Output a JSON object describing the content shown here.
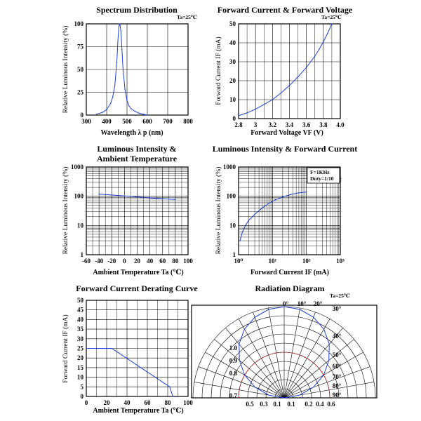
{
  "chart_data": [
    {
      "id": "spectrum",
      "type": "line",
      "title": "Spectrum Distribution",
      "note": "Ta=25℃",
      "xlabel": "Wavelength λ p (nm)",
      "ylabel": "Relative Luminous Intensity (%)",
      "xlim": [
        300,
        800
      ],
      "ylim": [
        0,
        100
      ],
      "xticks": [
        300,
        400,
        500,
        600,
        700,
        800
      ],
      "yticks": [
        0,
        25,
        50,
        75,
        100
      ],
      "grid": true,
      "series": [
        {
          "color": "#1f3fd6",
          "x": [
            350,
            380,
            400,
            420,
            430,
            440,
            450,
            455,
            460,
            465,
            470,
            475,
            480,
            490,
            500,
            510,
            520,
            540,
            560,
            580,
            600
          ],
          "y": [
            1,
            3,
            6,
            13,
            20,
            32,
            58,
            80,
            97,
            100,
            92,
            72,
            52,
            28,
            16,
            10,
            7,
            4,
            2,
            1,
            0
          ]
        }
      ]
    },
    {
      "id": "fwd-voltage",
      "type": "line",
      "title": "Forward Current & Forward Voltage",
      "note": "Ta=25℃",
      "xlabel": "Forward Voltage  VF (V)",
      "ylabel": "Forward Current IF (mA)",
      "xlim": [
        2.8,
        4.0
      ],
      "ylim": [
        0,
        50
      ],
      "xticks": [
        2.8,
        3.0,
        3.2,
        3.4,
        3.6,
        3.8,
        4.0
      ],
      "yticks": [
        0,
        10,
        20,
        30,
        40,
        50
      ],
      "grid": true,
      "series": [
        {
          "color": "#1f3fd6",
          "x": [
            2.8,
            2.9,
            3.0,
            3.1,
            3.2,
            3.3,
            3.4,
            3.5,
            3.6,
            3.7,
            3.75,
            3.8,
            3.85,
            3.9
          ],
          "y": [
            1.5,
            3,
            5,
            7.5,
            10,
            13.5,
            17.5,
            22,
            27,
            33,
            36.5,
            40.5,
            45,
            50
          ]
        }
      ]
    },
    {
      "id": "lum-temp",
      "type": "line",
      "title": [
        "Luminous Intensity &",
        "Ambient Temperature"
      ],
      "xlabel": "Ambient Temperature Ta (℃)",
      "ylabel": "Relative Luminous Intensity (%)",
      "xlim": [
        -60,
        100
      ],
      "ylim": [
        1,
        1000
      ],
      "yscale": "log",
      "xticks": [
        -60,
        -40,
        -20,
        0,
        20,
        40,
        60,
        80,
        100
      ],
      "ytick_labels": [
        "1",
        "10",
        "100",
        "1000"
      ],
      "grid": true,
      "series": [
        {
          "color": "#1f3fd6",
          "x": [
            -40,
            -20,
            0,
            20,
            40,
            60,
            80
          ],
          "y": [
            118,
            110,
            102,
            95,
            88,
            82,
            78
          ]
        }
      ]
    },
    {
      "id": "lum-current",
      "type": "line",
      "title": "Luminous Intensity & Forward Current",
      "note": "Ta=25℃",
      "box_lines": [
        "F=1KHz",
        "Duty=1/10"
      ],
      "xlabel": "Forward Current IF (mA)",
      "ylabel": "Relative Luminous Intensity (%)",
      "xlim": [
        1,
        1000
      ],
      "ylim": [
        1,
        1000
      ],
      "xscale": "log",
      "yscale": "log",
      "xtick_labels": [
        "10⁰",
        "10¹",
        "10²",
        "10³"
      ],
      "ytick_labels": [
        "1",
        "10",
        "100",
        "1000"
      ],
      "grid": true,
      "series": [
        {
          "color": "#1f3fd6",
          "x": [
            1.1,
            1.3,
            1.6,
            2,
            3,
            5,
            8,
            12,
            20,
            35,
            60,
            100
          ],
          "y": [
            3,
            6,
            10,
            15,
            24,
            40,
            58,
            75,
            95,
            115,
            130,
            140
          ]
        }
      ]
    },
    {
      "id": "derating",
      "type": "line",
      "title": "Forward Current Derating Curve",
      "xlabel": "Ambient Temperature Ta (℃)",
      "ylabel": "Forward Current IF (mA)",
      "xlim": [
        0,
        100
      ],
      "ylim": [
        0,
        50
      ],
      "xticks": [
        0,
        20,
        40,
        60,
        80,
        100
      ],
      "yticks": [
        0,
        5,
        10,
        15,
        20,
        25,
        30,
        35,
        40,
        45,
        50
      ],
      "grid": true,
      "series": [
        {
          "color": "#1f3fd6",
          "x": [
            0,
            25,
            82,
            85
          ],
          "y": [
            25,
            25,
            5,
            0
          ]
        }
      ]
    },
    {
      "id": "radiation",
      "type": "radar",
      "title": "Radiation Diagram",
      "note": "Ta=25℃",
      "angle_labels": [
        "0°",
        "10°",
        "20°",
        "30°",
        "40°",
        "50°",
        "60°",
        "70°",
        "80°",
        "90°"
      ],
      "radial_labels": [
        "1.0",
        "0.9",
        "0.8",
        "0.7"
      ],
      "axis_labels": [
        "0.5",
        "0.3",
        "0.1",
        "0.1",
        "0.2",
        "0.4",
        "0.6"
      ],
      "grid": true,
      "series": [
        {
          "color": "#1f3fd6",
          "shape": "circle",
          "angles": [
            0,
            10,
            20,
            30,
            40,
            50,
            60,
            70,
            80,
            90
          ],
          "values": [
            1.0,
            0.985,
            0.94,
            0.87,
            0.77,
            0.64,
            0.5,
            0.34,
            0.17,
            0
          ]
        },
        {
          "color": "#d01818",
          "shape": "semicircle",
          "radius": 0.5
        }
      ]
    }
  ]
}
